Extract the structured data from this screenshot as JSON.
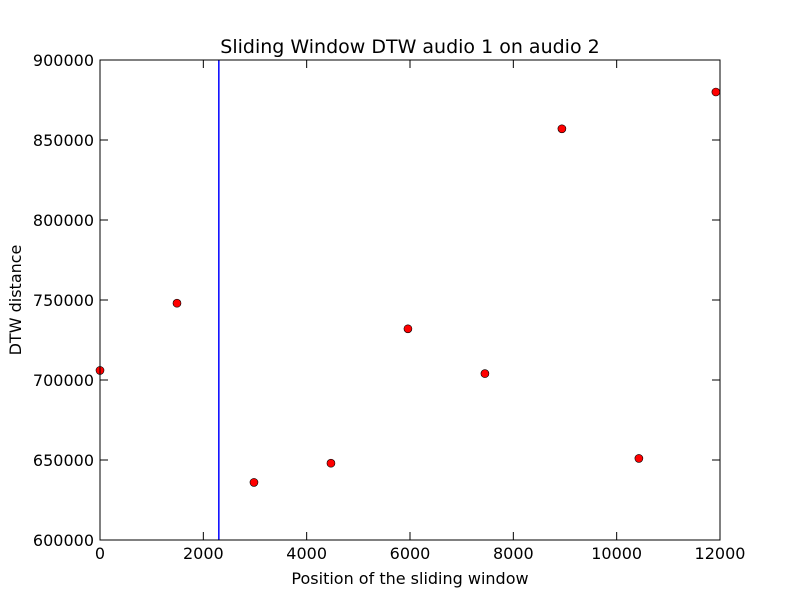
{
  "chart_data": {
    "type": "scatter",
    "title": "Sliding Window DTW audio 1 on audio 2",
    "xlabel": "Position of the sliding window",
    "ylabel": "DTW distance",
    "xlim": [
      0,
      12000
    ],
    "ylim": [
      600000,
      900000
    ],
    "xticks": [
      0,
      2000,
      4000,
      6000,
      8000,
      10000,
      12000
    ],
    "yticks": [
      600000,
      650000,
      700000,
      750000,
      800000,
      850000,
      900000
    ],
    "xtick_labels": [
      "0",
      "2000",
      "4000",
      "6000",
      "8000",
      "10000",
      "12000"
    ],
    "ytick_labels": [
      "600000",
      "650000",
      "700000",
      "750000",
      "800000",
      "850000",
      "900000"
    ],
    "grid": false,
    "series": [
      {
        "marker_color": "#ff0000",
        "points": [
          {
            "x": 0,
            "y": 706000
          },
          {
            "x": 1490,
            "y": 748000
          },
          {
            "x": 2980,
            "y": 636000
          },
          {
            "x": 4470,
            "y": 648000
          },
          {
            "x": 5960,
            "y": 732000
          },
          {
            "x": 7450,
            "y": 704000
          },
          {
            "x": 8940,
            "y": 857000
          },
          {
            "x": 10430,
            "y": 651000
          },
          {
            "x": 11920,
            "y": 880000
          }
        ]
      }
    ],
    "vline": {
      "x": 2300,
      "color": "#0000ff"
    }
  }
}
